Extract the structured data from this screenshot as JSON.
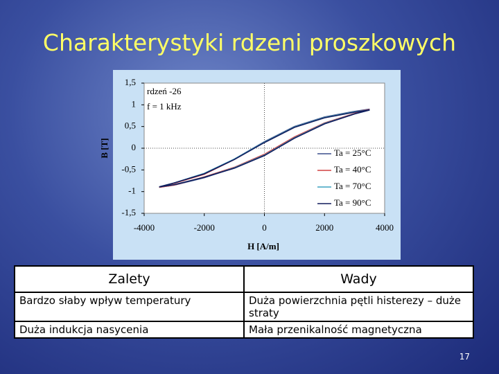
{
  "title": "Charakterystyki rdzeni proszkowych",
  "chart_data": {
    "type": "line",
    "annotations": [
      "rdzeń -26",
      "f = 1 kHz"
    ],
    "x_label": "H [A/m]",
    "y_label": "B [T]",
    "xlim": [
      -4000,
      4000
    ],
    "xticks": [
      -4000,
      -2000,
      0,
      2000,
      4000
    ],
    "ylim": [
      -1.5,
      1.5
    ],
    "yticks": [
      {
        "value": 1.5,
        "label": "1,5"
      },
      1,
      {
        "value": 0.5,
        "label": "0,5"
      },
      0,
      {
        "value": -0.5,
        "label": "-0,5"
      },
      -1,
      {
        "value": -1.5,
        "label": "-1,5"
      }
    ],
    "x": [
      -3500,
      -3000,
      -2000,
      -1000,
      0,
      1000,
      2000,
      3000,
      3500,
      3000,
      2000,
      1000,
      0,
      -1000,
      -2000,
      -3000,
      -3500
    ],
    "series": [
      {
        "name": "Ta = 25°C",
        "color": "#3a4f8c",
        "values": [
          -0.9,
          -0.85,
          -0.68,
          -0.45,
          -0.15,
          0.25,
          0.58,
          0.8,
          0.9,
          0.85,
          0.72,
          0.5,
          0.15,
          -0.25,
          -0.58,
          -0.8,
          -0.9
        ]
      },
      {
        "name": "Ta = 40°C",
        "color": "#d04040",
        "values": [
          -0.9,
          -0.85,
          -0.66,
          -0.44,
          -0.14,
          0.26,
          0.58,
          0.8,
          0.89,
          0.84,
          0.71,
          0.49,
          0.14,
          -0.26,
          -0.6,
          -0.81,
          -0.9
        ]
      },
      {
        "name": "Ta = 70°C",
        "color": "#3aa0c0",
        "values": [
          -0.89,
          -0.84,
          -0.67,
          -0.45,
          -0.16,
          0.24,
          0.57,
          0.79,
          0.88,
          0.84,
          0.71,
          0.49,
          0.14,
          -0.25,
          -0.58,
          -0.8,
          -0.89
        ]
      },
      {
        "name": "Ta = 90°C",
        "color": "#101c5c",
        "values": [
          -0.89,
          -0.84,
          -0.67,
          -0.46,
          -0.17,
          0.23,
          0.56,
          0.79,
          0.88,
          0.83,
          0.7,
          0.48,
          0.13,
          -0.26,
          -0.59,
          -0.8,
          -0.89
        ]
      }
    ]
  },
  "table": {
    "header": [
      "Zalety",
      "Wady"
    ],
    "rows": [
      [
        "Bardzo słaby wpływ temperatury",
        "Duża powierzchnia pętli histerezy – duże straty"
      ],
      [
        "Duża indukcja nasycenia",
        "Mała przenikalność magnetyczna"
      ]
    ]
  },
  "page_number": "17"
}
